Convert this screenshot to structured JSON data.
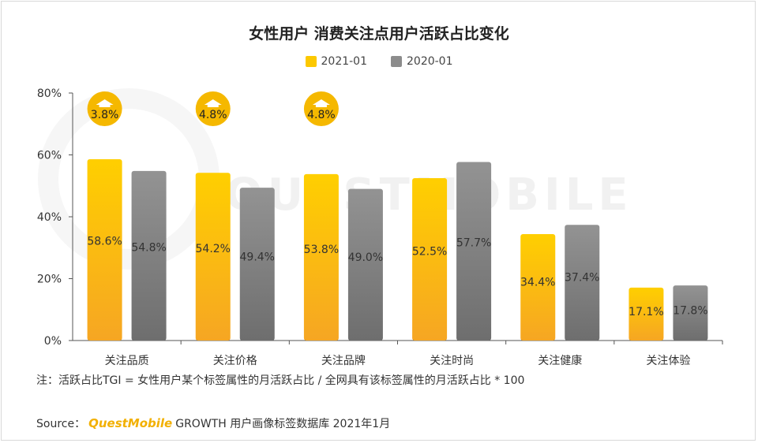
{
  "chart_data": {
    "type": "bar",
    "title": "女性用户 消费关注点用户活跃占比变化",
    "categories": [
      "关注品质",
      "关注价格",
      "关注品牌",
      "关注时尚",
      "关注健康",
      "关注体验"
    ],
    "series": [
      {
        "name": "2021-01",
        "values": [
          58.6,
          54.2,
          53.8,
          52.5,
          34.4,
          17.1
        ],
        "labels": [
          "58.6%",
          "54.2%",
          "53.8%",
          "52.5%",
          "34.4%",
          "17.1%"
        ],
        "color": "#fcc800"
      },
      {
        "name": "2020-01",
        "values": [
          54.8,
          49.4,
          49.0,
          57.7,
          37.4,
          17.8
        ],
        "labels": [
          "54.8%",
          "49.4%",
          "49.0%",
          "57.7%",
          "37.4%",
          "17.8%"
        ],
        "color": "#8c8c8c"
      }
    ],
    "ylim": [
      0,
      80
    ],
    "yticks": [
      0,
      20,
      40,
      60,
      80
    ],
    "ytick_labels": [
      "0%",
      "20%",
      "40%",
      "60%",
      "80%"
    ],
    "legend_position": "top-center",
    "annotations": [
      {
        "category": "关注品质",
        "text": "3.8%",
        "icon": "up-arrow-icon"
      },
      {
        "category": "关注价格",
        "text": "4.8%",
        "icon": "up-arrow-icon"
      },
      {
        "category": "关注品牌",
        "text": "4.8%",
        "icon": "up-arrow-icon"
      }
    ],
    "annotation_color": "#f5b800"
  },
  "note": "注：活跃占比TGI = 女性用户某个标签属性的月活跃占比 / 全网具有该标签属性的月活跃占比 * 100",
  "source": {
    "prefix": "Source：",
    "brand": "QuestMobile",
    "text": "GROWTH 用户画像标签数据库 2021年1月"
  },
  "watermark": "QUESTMOBILE"
}
